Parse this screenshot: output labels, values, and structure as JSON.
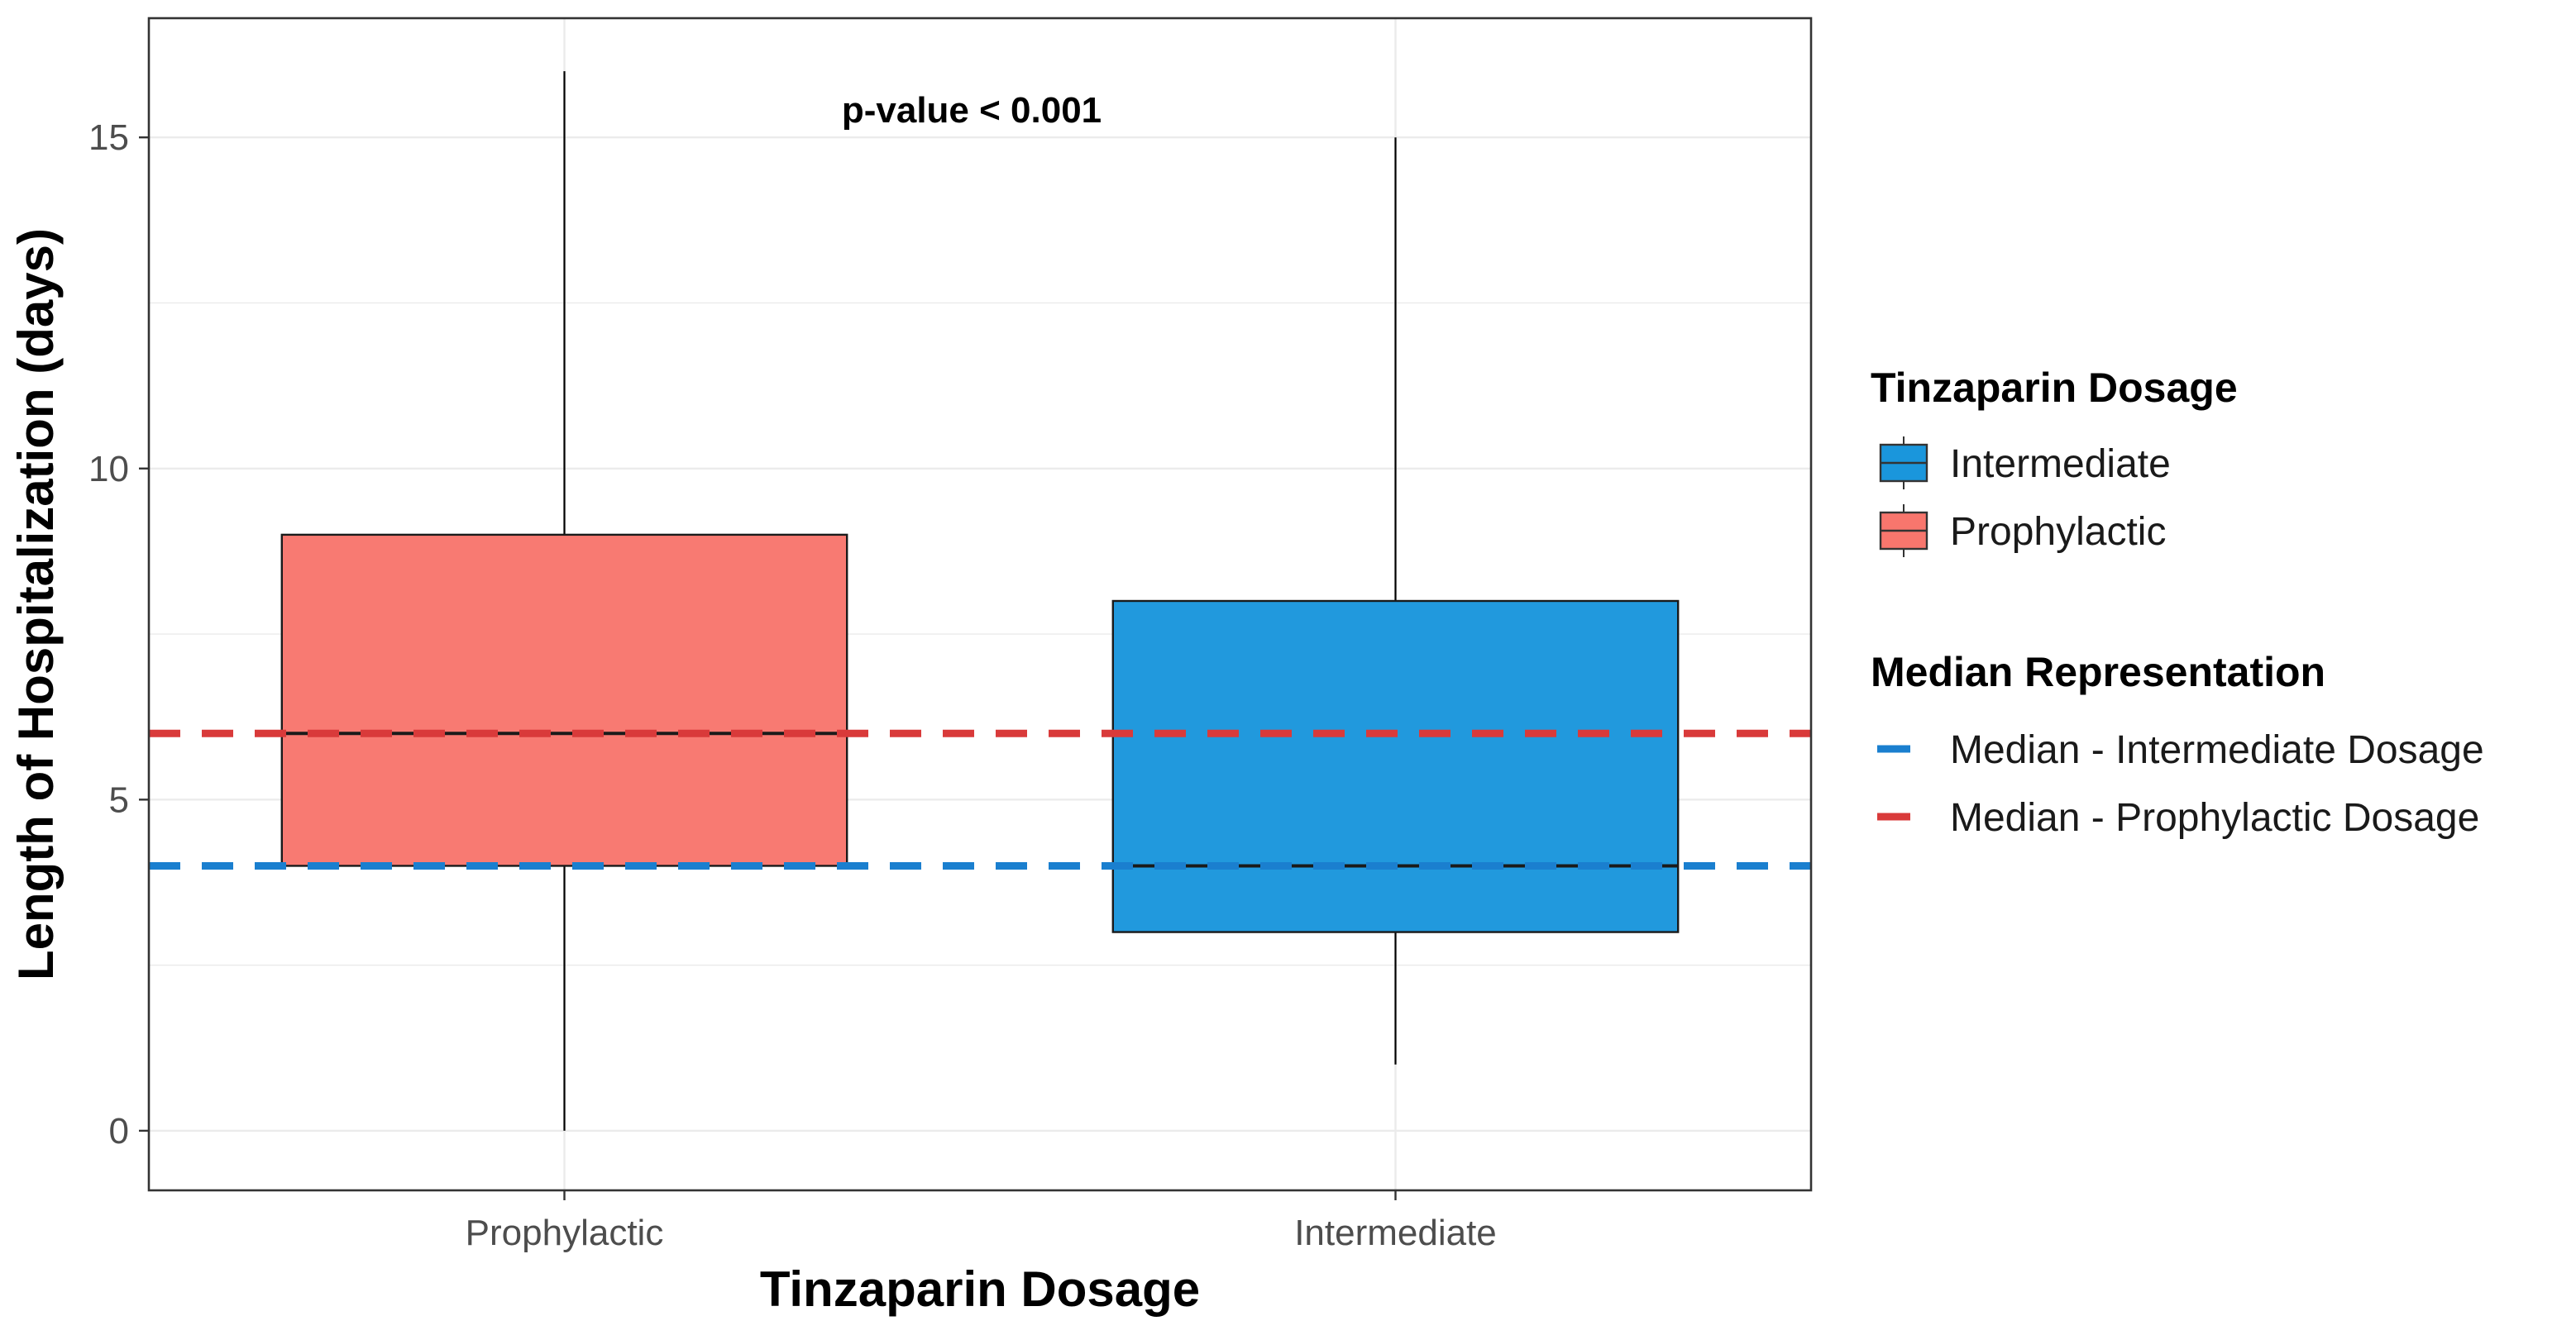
{
  "chart_data": {
    "type": "boxplot",
    "xlabel": "Tinzaparin Dosage",
    "ylabel": "Length of Hospitalization (days)",
    "ylim": [
      -0.9,
      16.8
    ],
    "yticks": [
      0,
      5,
      10,
      15
    ],
    "grid": true,
    "categories": [
      "Prophylactic",
      "Intermediate"
    ],
    "boxes": [
      {
        "name": "Prophylactic",
        "min": 0,
        "q1": 4,
        "median": 6,
        "q3": 9,
        "max": 16,
        "color": "#F8766D"
      },
      {
        "name": "Intermediate",
        "min": 1,
        "q1": 3,
        "median": 4,
        "q3": 8,
        "max": 15,
        "color": "#1A96DC"
      }
    ],
    "reference_lines": [
      {
        "label": "Median - Intermediate Dosage",
        "value": 4,
        "color": "#1A7FCF",
        "style": "dashed"
      },
      {
        "label": "Median - Prophylactic Dosage",
        "value": 6,
        "color": "#D93A3A",
        "style": "dashed"
      }
    ],
    "annotation": "p-value < 0.001",
    "legends": [
      {
        "title": "Tinzaparin Dosage",
        "items": [
          {
            "label": "Intermediate",
            "color": "#1A96DC"
          },
          {
            "label": "Prophylactic",
            "color": "#F8766D"
          }
        ]
      },
      {
        "title": "Median Representation",
        "items": [
          {
            "label": "Median - Intermediate Dosage",
            "color": "#1A7FCF"
          },
          {
            "label": "Median - Prophylactic Dosage",
            "color": "#D93A3A"
          }
        ]
      }
    ],
    "legend_position": "right"
  }
}
